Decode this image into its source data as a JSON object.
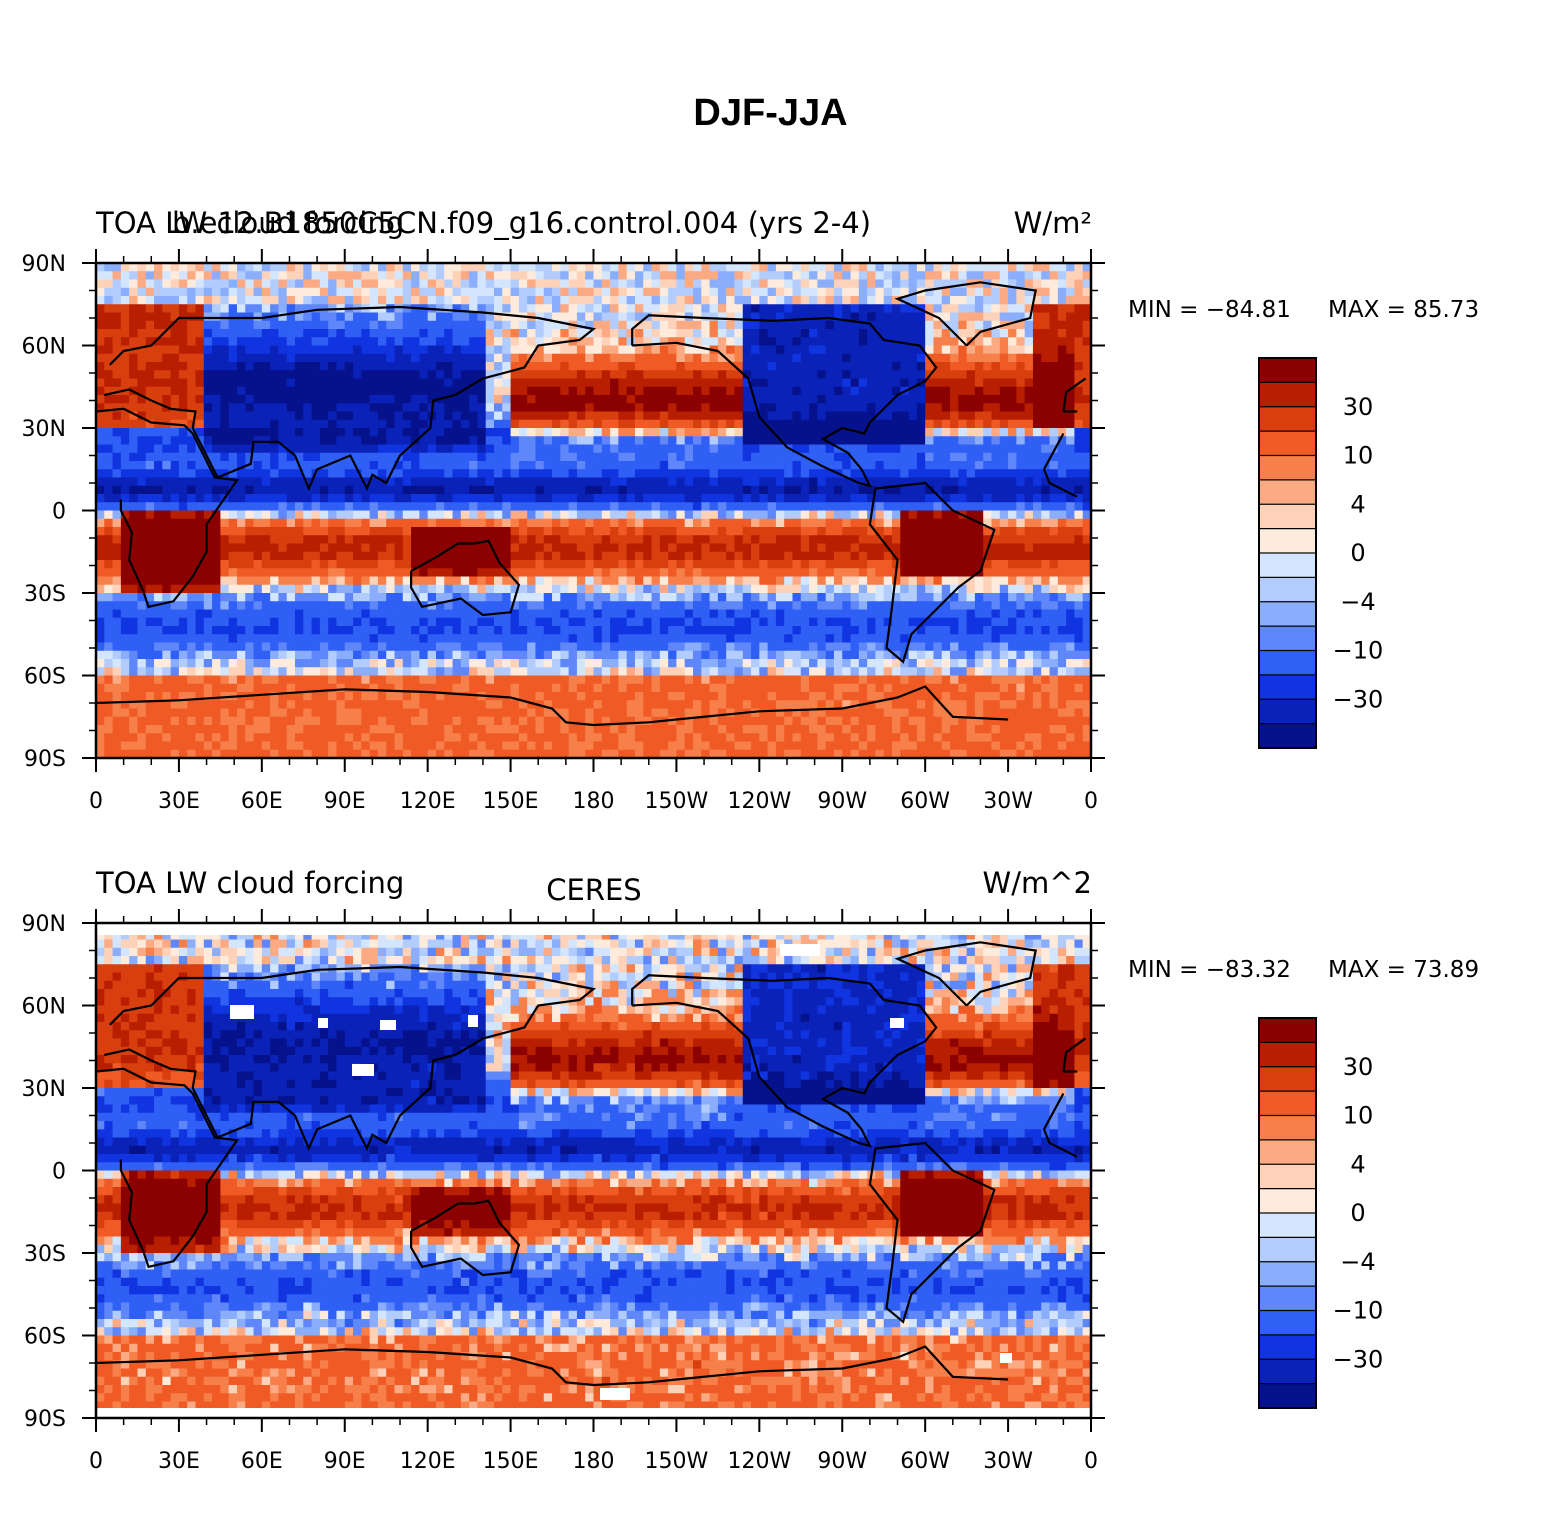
{
  "title": "DJF-JJA",
  "panels": [
    {
      "left_label": "TOA LW cloud forcing",
      "overlay_label": "b.e12.B1850C5CN.f09_g16.control.004 (yrs 2-4)",
      "center_label": "",
      "units": "W/m²",
      "min_label": "MIN = −84.81",
      "max_label": "MAX =  85.73"
    },
    {
      "left_label": "TOA LW cloud forcing",
      "overlay_label": "",
      "center_label": "CERES",
      "units": "W/m^2",
      "min_label": "MIN = −83.32",
      "max_label": "MAX =  73.89"
    }
  ],
  "chart_data": [
    {
      "type": "heatmap",
      "title": "b.e12.B1850C5CN.f09_g16.control.004 (yrs 2-4)",
      "variable": "TOA LW cloud forcing",
      "units": "W/m²",
      "min": -84.81,
      "max": 85.73,
      "xlim": [
        0,
        360
      ],
      "ylim": [
        -90,
        90
      ],
      "x_tick_labels": [
        "0",
        "30E",
        "60E",
        "90E",
        "120E",
        "150E",
        "180",
        "150W",
        "120W",
        "90W",
        "60W",
        "30W",
        "0"
      ],
      "y_tick_labels": [
        "90N",
        "60N",
        "30N",
        "0",
        "30S",
        "60S",
        "90S"
      ],
      "colorbar_labels": [
        "30",
        "10",
        "4",
        "0",
        "−4",
        "−10",
        "−30"
      ],
      "colorbar_colors": [
        "#8b0000",
        "#b81e00",
        "#d83f0f",
        "#f05a24",
        "#f7804a",
        "#fbaa83",
        "#fdd2b8",
        "#feebdc",
        "#d4e6fd",
        "#b2cdfd",
        "#8aaefb",
        "#5f87fa",
        "#2f5ff4",
        "#1035e0",
        "#0a22b8",
        "#06128c"
      ]
    },
    {
      "type": "heatmap",
      "title": "CERES",
      "variable": "TOA LW cloud forcing",
      "units": "W/m^2",
      "min": -83.32,
      "max": 73.89,
      "xlim": [
        0,
        360
      ],
      "ylim": [
        -90,
        90
      ],
      "x_tick_labels": [
        "0",
        "30E",
        "60E",
        "90E",
        "120E",
        "150E",
        "180",
        "150W",
        "120W",
        "90W",
        "60W",
        "30W",
        "0"
      ],
      "y_tick_labels": [
        "90N",
        "60N",
        "30N",
        "0",
        "30S",
        "60S",
        "90S"
      ],
      "colorbar_labels": [
        "30",
        "10",
        "4",
        "0",
        "−4",
        "−10",
        "−30"
      ],
      "colorbar_colors": [
        "#8b0000",
        "#b81e00",
        "#d83f0f",
        "#f05a24",
        "#f7804a",
        "#fbaa83",
        "#fdd2b8",
        "#feebdc",
        "#d4e6fd",
        "#b2cdfd",
        "#8aaefb",
        "#5f87fa",
        "#2f5ff4",
        "#1035e0",
        "#0a22b8",
        "#06128c"
      ]
    }
  ]
}
